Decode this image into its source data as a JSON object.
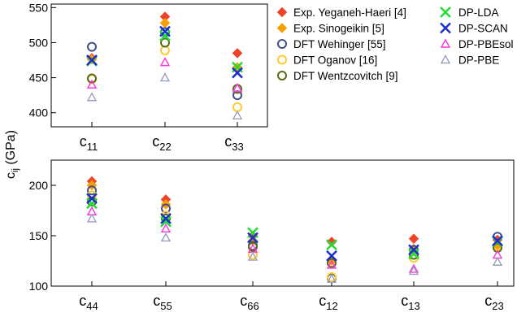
{
  "ylabel_main": "c",
  "ylabel_sub": "ij",
  "ylabel_unit": " (GPa)",
  "legend": [
    {
      "key": "yeganeh",
      "label": "Exp. Yeganeh-Haeri [4]"
    },
    {
      "key": "sinogeikin",
      "label": "Exp. Sinogeikin [5]"
    },
    {
      "key": "wehinger",
      "label": "DFT Wehinger [55]"
    },
    {
      "key": "oganov",
      "label": "DFT Oganov [16]"
    },
    {
      "key": "wentzcovitch",
      "label": "DFT Wentzcovitch [9]"
    },
    {
      "key": "dplda",
      "label": "DP-LDA"
    },
    {
      "key": "dpscan",
      "label": "DP-SCAN"
    },
    {
      "key": "dppbesol",
      "label": "DP-PBEsol"
    },
    {
      "key": "dppbe",
      "label": "DP-PBE"
    }
  ],
  "styles": {
    "yeganeh": {
      "marker": "diamond",
      "color": "#f0442a"
    },
    "sinogeikin": {
      "marker": "diamond",
      "color": "#f5a000"
    },
    "wehinger": {
      "marker": "circle",
      "color": "#434f8a"
    },
    "oganov": {
      "marker": "circle",
      "color": "#ffcc2e"
    },
    "wentzcovitch": {
      "marker": "circle",
      "color": "#5a6b16"
    },
    "dplda": {
      "marker": "x",
      "color": "#22dd33"
    },
    "dpscan": {
      "marker": "x",
      "color": "#1a2fd0"
    },
    "dppbesol": {
      "marker": "triangle",
      "color": "#ff33dd"
    },
    "dppbe": {
      "marker": "triangle",
      "color": "#9aa0c0"
    }
  },
  "chart_data": [
    {
      "type": "scatter",
      "panel": "top",
      "categories": [
        {
          "main": "c",
          "sub": "11"
        },
        {
          "main": "c",
          "sub": "22"
        },
        {
          "main": "c",
          "sub": "33"
        }
      ],
      "ylim": [
        380,
        555
      ],
      "yticks": [
        400,
        450,
        500,
        550
      ],
      "series": [
        {
          "key": "yeganeh",
          "name": "Exp. Yeganeh-Haeri [4]",
          "values": [
            478,
            537,
            485
          ]
        },
        {
          "key": "sinogeikin",
          "name": "Exp. Sinogeikin [5]",
          "values": [
            476,
            528,
            465
          ]
        },
        {
          "key": "wehinger",
          "name": "DFT Wehinger [55]",
          "values": [
            494,
            515,
            425
          ]
        },
        {
          "key": "oganov",
          "name": "DFT Oganov [16]",
          "values": [
            448,
            489,
            408
          ]
        },
        {
          "key": "wentzcovitch",
          "name": "DFT Wentzcovitch [9]",
          "values": [
            449,
            500,
            434
          ]
        },
        {
          "key": "dplda",
          "name": "DP-LDA",
          "values": [
            474,
            510,
            465
          ]
        },
        {
          "key": "dpscan",
          "name": "DP-SCAN",
          "values": [
            475,
            516,
            457
          ]
        },
        {
          "key": "dppbesol",
          "name": "DP-PBEsol",
          "values": [
            440,
            472,
            435
          ]
        },
        {
          "key": "dppbe",
          "name": "DP-PBE",
          "values": [
            422,
            450,
            396
          ]
        }
      ]
    },
    {
      "type": "scatter",
      "panel": "bottom",
      "categories": [
        {
          "main": "c",
          "sub": "44"
        },
        {
          "main": "c",
          "sub": "55"
        },
        {
          "main": "c",
          "sub": "66"
        },
        {
          "main": "c",
          "sub": "12"
        },
        {
          "main": "c",
          "sub": "13"
        },
        {
          "main": "c",
          "sub": "23"
        }
      ],
      "ylim": [
        100,
        225
      ],
      "yticks": [
        100,
        150,
        200
      ],
      "series": [
        {
          "key": "yeganeh",
          "name": "Exp. Yeganeh-Haeri [4]",
          "values": [
            204,
            186,
            150,
            144,
            147,
            146
          ]
        },
        {
          "key": "sinogeikin",
          "name": "Exp. Sinogeikin [5]",
          "values": [
            200,
            181,
            145,
            125,
            137,
            140
          ]
        },
        {
          "key": "wehinger",
          "name": "DFT Wehinger [55]",
          "values": [
            195,
            177,
            140,
            108,
            136,
            149
          ]
        },
        {
          "key": "oganov",
          "name": "DFT Oganov [16]",
          "values": [
            190,
            170,
            131,
            109,
            128,
            140
          ]
        },
        {
          "key": "wentzcovitch",
          "name": "DFT Wentzcovitch [9]",
          "values": [
            184,
            167,
            139,
            123,
            131,
            138
          ]
        },
        {
          "key": "dplda",
          "name": "DP-LDA",
          "values": [
            182,
            164,
            153,
            141,
            132,
            144
          ]
        },
        {
          "key": "dpscan",
          "name": "DP-SCAN",
          "values": [
            187,
            167,
            148,
            130,
            136,
            145
          ]
        },
        {
          "key": "dppbesol",
          "name": "DP-PBEsol",
          "values": [
            174,
            157,
            137,
            121,
            117,
            131
          ]
        },
        {
          "key": "dppbe",
          "name": "DP-PBE",
          "values": [
            167,
            148,
            129,
            107,
            115,
            124
          ]
        }
      ]
    }
  ]
}
